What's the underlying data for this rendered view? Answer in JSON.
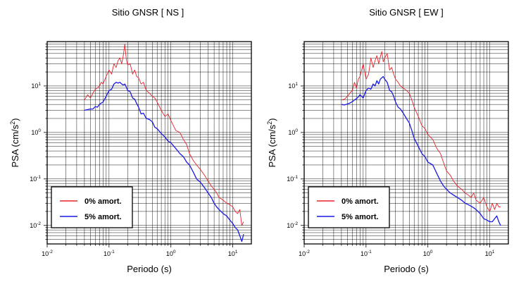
{
  "chart_data": [
    {
      "type": "line",
      "title": "Sitio GNSR [ NS ]",
      "xlabel": "Periodo (s)",
      "ylabel_base": "PSA (cm/s",
      "ylabel_sup": "2",
      "ylabel_tail": ")",
      "x_scale": "log",
      "y_scale": "log",
      "xlim": [
        0.01,
        20
      ],
      "ylim": [
        0.004,
        90
      ],
      "x_ticks": [
        {
          "base": "10",
          "exp": "-2",
          "value": 0.01
        },
        {
          "base": "10",
          "exp": "-1",
          "value": 0.1
        },
        {
          "base": "10",
          "exp": "0",
          "value": 1
        },
        {
          "base": "10",
          "exp": "1",
          "value": 10
        }
      ],
      "y_ticks": [
        {
          "base": "10",
          "exp": "-2",
          "value": 0.01
        },
        {
          "base": "10",
          "exp": "-1",
          "value": 0.1
        },
        {
          "base": "10",
          "exp": "0",
          "value": 1
        },
        {
          "base": "10",
          "exp": "1",
          "value": 10
        }
      ],
      "grid": true,
      "legend_position": "bottom-left",
      "series": [
        {
          "name": "0% amort.",
          "color": "#e8222a",
          "x": [
            0.04,
            0.045,
            0.05,
            0.055,
            0.06,
            0.065,
            0.07,
            0.075,
            0.08,
            0.09,
            0.1,
            0.11,
            0.12,
            0.13,
            0.14,
            0.15,
            0.16,
            0.17,
            0.18,
            0.19,
            0.2,
            0.22,
            0.24,
            0.26,
            0.28,
            0.3,
            0.33,
            0.36,
            0.4,
            0.45,
            0.5,
            0.55,
            0.6,
            0.7,
            0.8,
            0.9,
            1.0,
            1.2,
            1.4,
            1.6,
            1.8,
            2.0,
            2.3,
            2.6,
            3.0,
            3.5,
            4.0,
            4.5,
            5.0,
            5.5,
            6.0,
            7.0,
            8.0,
            9.0,
            10.0,
            11.0,
            12.0,
            13.0,
            14.0,
            15.0
          ],
          "y": [
            5,
            6.5,
            5.5,
            7,
            8.5,
            9,
            10,
            12,
            11,
            16,
            22,
            18,
            30,
            25,
            35,
            40,
            30,
            45,
            80,
            38,
            28,
            30,
            18,
            22,
            16,
            15,
            11,
            12,
            8,
            7,
            6,
            5.5,
            4.5,
            3,
            2.2,
            2.5,
            1.8,
            1.1,
            1.0,
            0.7,
            0.55,
            0.35,
            0.25,
            0.2,
            0.16,
            0.12,
            0.09,
            0.07,
            0.06,
            0.05,
            0.04,
            0.035,
            0.03,
            0.028,
            0.025,
            0.02,
            0.018,
            0.022,
            0.01,
            0.012
          ]
        },
        {
          "name": "5% amort.",
          "color": "#1a1ae6",
          "x": [
            0.04,
            0.045,
            0.05,
            0.055,
            0.06,
            0.065,
            0.07,
            0.075,
            0.08,
            0.09,
            0.1,
            0.11,
            0.12,
            0.13,
            0.14,
            0.15,
            0.16,
            0.17,
            0.18,
            0.19,
            0.2,
            0.22,
            0.24,
            0.26,
            0.28,
            0.3,
            0.33,
            0.36,
            0.4,
            0.45,
            0.5,
            0.55,
            0.6,
            0.7,
            0.8,
            0.9,
            1.0,
            1.2,
            1.4,
            1.6,
            1.8,
            2.0,
            2.3,
            2.6,
            3.0,
            3.5,
            4.0,
            4.5,
            5.0,
            5.5,
            6.0,
            7.0,
            8.0,
            9.0,
            10.0,
            11.0,
            12.0,
            13.0,
            14.0,
            15.0
          ],
          "y": [
            3,
            3.1,
            3.2,
            3.2,
            3.6,
            3.5,
            4,
            4.3,
            4.5,
            6,
            8,
            8.5,
            11,
            12,
            11.5,
            12,
            11,
            10.5,
            11,
            9.5,
            8,
            7.5,
            5.5,
            5.2,
            4.2,
            3.5,
            2.5,
            2.6,
            2.0,
            1.9,
            1.7,
            1.3,
            1.2,
            0.95,
            0.8,
            0.65,
            0.6,
            0.45,
            0.35,
            0.3,
            0.23,
            0.2,
            0.14,
            0.1,
            0.085,
            0.065,
            0.05,
            0.04,
            0.03,
            0.025,
            0.022,
            0.018,
            0.016,
            0.013,
            0.011,
            0.009,
            0.008,
            0.006,
            0.0045,
            0.0065
          ]
        }
      ]
    },
    {
      "type": "line",
      "title": "Sitio GNSR [ EW ]",
      "xlabel": "Periodo (s)",
      "ylabel_base": "PSA (cm/s",
      "ylabel_sup": "2",
      "ylabel_tail": ")",
      "x_scale": "log",
      "y_scale": "log",
      "xlim": [
        0.01,
        20
      ],
      "ylim": [
        0.004,
        90
      ],
      "x_ticks": [
        {
          "base": "10",
          "exp": "-2",
          "value": 0.01
        },
        {
          "base": "10",
          "exp": "-1",
          "value": 0.1
        },
        {
          "base": "10",
          "exp": "0",
          "value": 1
        },
        {
          "base": "10",
          "exp": "1",
          "value": 10
        }
      ],
      "y_ticks": [
        {
          "base": "10",
          "exp": "-2",
          "value": 0.01
        },
        {
          "base": "10",
          "exp": "-1",
          "value": 0.1
        },
        {
          "base": "10",
          "exp": "0",
          "value": 1
        },
        {
          "base": "10",
          "exp": "1",
          "value": 10
        }
      ],
      "grid": true,
      "legend_position": "bottom-left",
      "series": [
        {
          "name": "0% amort.",
          "color": "#e8222a",
          "x": [
            0.04,
            0.045,
            0.05,
            0.055,
            0.06,
            0.065,
            0.07,
            0.075,
            0.08,
            0.09,
            0.1,
            0.11,
            0.12,
            0.13,
            0.14,
            0.15,
            0.16,
            0.17,
            0.18,
            0.19,
            0.2,
            0.22,
            0.24,
            0.26,
            0.28,
            0.3,
            0.33,
            0.36,
            0.4,
            0.45,
            0.5,
            0.55,
            0.6,
            0.7,
            0.8,
            0.9,
            1.0,
            1.2,
            1.4,
            1.6,
            1.8,
            2.0,
            2.3,
            2.6,
            3.0,
            3.5,
            4.0,
            4.5,
            5.0,
            5.5,
            6.0,
            7.0,
            8.0,
            9.0,
            10.0,
            11.0,
            12.0,
            13.0,
            14.0,
            15.0
          ],
          "y": [
            5,
            5.2,
            6,
            7,
            8,
            12,
            9,
            14,
            16,
            30,
            14,
            18,
            40,
            25,
            35,
            45,
            30,
            42,
            55,
            33,
            40,
            50,
            22,
            25,
            18,
            14,
            12,
            10,
            9,
            8,
            7,
            5,
            3.5,
            2.2,
            1.4,
            1.2,
            0.9,
            0.7,
            0.45,
            0.35,
            0.22,
            0.15,
            0.12,
            0.09,
            0.07,
            0.06,
            0.05,
            0.045,
            0.04,
            0.05,
            0.035,
            0.03,
            0.04,
            0.025,
            0.02,
            0.03,
            0.022,
            0.03,
            0.025,
            0.025
          ]
        },
        {
          "name": "5% amort.",
          "color": "#1a1ae6",
          "x": [
            0.04,
            0.045,
            0.05,
            0.055,
            0.06,
            0.065,
            0.07,
            0.075,
            0.08,
            0.09,
            0.1,
            0.11,
            0.12,
            0.13,
            0.14,
            0.15,
            0.16,
            0.17,
            0.18,
            0.19,
            0.2,
            0.22,
            0.24,
            0.26,
            0.28,
            0.3,
            0.33,
            0.36,
            0.4,
            0.45,
            0.5,
            0.55,
            0.6,
            0.7,
            0.8,
            0.9,
            1.0,
            1.2,
            1.4,
            1.6,
            1.8,
            2.0,
            2.3,
            2.6,
            3.0,
            3.5,
            4.0,
            4.5,
            5.0,
            5.5,
            6.0,
            7.0,
            8.0,
            9.0,
            10.0,
            11.0,
            12.0,
            13.0,
            14.0,
            15.0
          ],
          "y": [
            4,
            3.9,
            4.1,
            4.3,
            4.6,
            5,
            5.3,
            5.8,
            6.5,
            5.5,
            8,
            9,
            8.5,
            11,
            10,
            13,
            11,
            14,
            15,
            16,
            14,
            12,
            8,
            7.5,
            6,
            4.5,
            3.5,
            3.2,
            2.6,
            2.0,
            1.6,
            1.1,
            0.75,
            0.5,
            0.35,
            0.3,
            0.23,
            0.2,
            0.13,
            0.09,
            0.07,
            0.06,
            0.05,
            0.045,
            0.04,
            0.035,
            0.03,
            0.028,
            0.026,
            0.024,
            0.022,
            0.018,
            0.014,
            0.013,
            0.012,
            0.012,
            0.014,
            0.016,
            0.012,
            0.01
          ]
        }
      ]
    }
  ]
}
